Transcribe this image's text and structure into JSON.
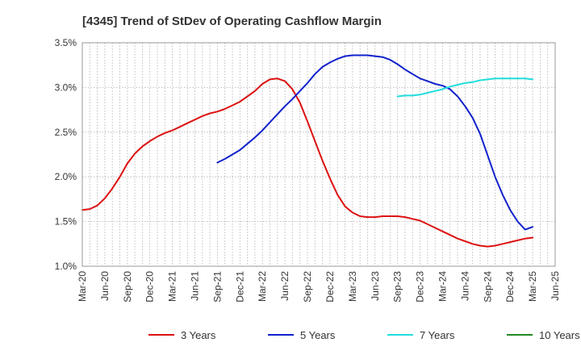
{
  "chart_data": {
    "type": "line",
    "title": "[4345]  Trend of StDev of Operating Cashflow Margin",
    "xlabel": "",
    "ylabel": "",
    "y_unit": "%",
    "ylim": [
      1.0,
      3.5
    ],
    "y_ticks": [
      "1.0%",
      "1.5%",
      "2.0%",
      "2.5%",
      "3.0%",
      "3.5%"
    ],
    "x_ticks": [
      "Mar-20",
      "Jun-20",
      "Sep-20",
      "Dec-20",
      "Mar-21",
      "Jun-21",
      "Sep-21",
      "Dec-21",
      "Mar-22",
      "Jun-22",
      "Sep-22",
      "Dec-22",
      "Mar-23",
      "Jun-23",
      "Sep-23",
      "Dec-23",
      "Mar-24",
      "Jun-24",
      "Sep-24",
      "Dec-24",
      "Mar-25",
      "Jun-25"
    ],
    "grid": true,
    "legend_position": "bottom",
    "series": [
      {
        "name": "3 Years",
        "color": "#dd1111",
        "x": [
          "Mar-20",
          "Apr-20",
          "May-20",
          "Jun-20",
          "Jul-20",
          "Aug-20",
          "Sep-20",
          "Oct-20",
          "Nov-20",
          "Dec-20",
          "Jan-21",
          "Feb-21",
          "Mar-21",
          "Apr-21",
          "May-21",
          "Jun-21",
          "Jul-21",
          "Aug-21",
          "Sep-21",
          "Oct-21",
          "Nov-21",
          "Dec-21",
          "Jan-22",
          "Feb-22",
          "Mar-22",
          "Apr-22",
          "May-22",
          "Jun-22",
          "Jul-22",
          "Aug-22",
          "Sep-22",
          "Oct-22",
          "Nov-22",
          "Dec-22",
          "Jan-23",
          "Feb-23",
          "Mar-23",
          "Apr-23",
          "May-23",
          "Jun-23",
          "Jul-23",
          "Aug-23",
          "Sep-23",
          "Oct-23",
          "Nov-23",
          "Dec-23",
          "Jan-24",
          "Feb-24",
          "Mar-24",
          "Apr-24",
          "May-24",
          "Jun-24",
          "Jul-24",
          "Aug-24",
          "Sep-24",
          "Oct-24",
          "Nov-24",
          "Dec-24",
          "Jan-25",
          "Feb-25",
          "Mar-25"
        ],
        "values": [
          1.63,
          1.64,
          1.68,
          1.76,
          1.87,
          2.0,
          2.15,
          2.26,
          2.34,
          2.4,
          2.45,
          2.49,
          2.52,
          2.56,
          2.6,
          2.64,
          2.68,
          2.71,
          2.73,
          2.76,
          2.8,
          2.84,
          2.9,
          2.96,
          3.04,
          3.09,
          3.1,
          3.07,
          2.98,
          2.83,
          2.62,
          2.4,
          2.18,
          1.98,
          1.8,
          1.67,
          1.6,
          1.56,
          1.55,
          1.55,
          1.56,
          1.56,
          1.56,
          1.55,
          1.53,
          1.51,
          1.47,
          1.43,
          1.39,
          1.35,
          1.31,
          1.28,
          1.25,
          1.23,
          1.22,
          1.23,
          1.25,
          1.27,
          1.29,
          1.31,
          1.32
        ]
      },
      {
        "name": "5 Years",
        "color": "#1122cc",
        "x": [
          "Sep-21",
          "Oct-21",
          "Nov-21",
          "Dec-21",
          "Jan-22",
          "Feb-22",
          "Mar-22",
          "Apr-22",
          "May-22",
          "Jun-22",
          "Jul-22",
          "Aug-22",
          "Sep-22",
          "Oct-22",
          "Nov-22",
          "Dec-22",
          "Jan-23",
          "Feb-23",
          "Mar-23",
          "Apr-23",
          "May-23",
          "Jun-23",
          "Jul-23",
          "Aug-23",
          "Sep-23",
          "Oct-23",
          "Nov-23",
          "Dec-23",
          "Jan-24",
          "Feb-24",
          "Mar-24",
          "Apr-24",
          "May-24",
          "Jun-24",
          "Jul-24",
          "Aug-24",
          "Sep-24",
          "Oct-24",
          "Nov-24",
          "Dec-24",
          "Jan-25",
          "Feb-25",
          "Mar-25"
        ],
        "values": [
          2.16,
          2.2,
          2.25,
          2.3,
          2.37,
          2.44,
          2.52,
          2.61,
          2.7,
          2.79,
          2.87,
          2.96,
          3.05,
          3.15,
          3.23,
          3.28,
          3.32,
          3.35,
          3.36,
          3.36,
          3.36,
          3.35,
          3.34,
          3.31,
          3.26,
          3.2,
          3.15,
          3.1,
          3.07,
          3.04,
          3.02,
          2.98,
          2.9,
          2.79,
          2.66,
          2.48,
          2.24,
          2.0,
          1.8,
          1.63,
          1.5,
          1.41,
          1.44
        ]
      },
      {
        "name": "7 Years",
        "color": "#22dddd",
        "x": [
          "Sep-23",
          "Oct-23",
          "Nov-23",
          "Dec-23",
          "Jan-24",
          "Feb-24",
          "Mar-24",
          "Apr-24",
          "May-24",
          "Jun-24",
          "Jul-24",
          "Aug-24",
          "Sep-24",
          "Oct-24",
          "Nov-24",
          "Dec-24",
          "Jan-25",
          "Feb-25",
          "Mar-25"
        ],
        "values": [
          2.9,
          2.91,
          2.91,
          2.92,
          2.94,
          2.96,
          2.98,
          3.01,
          3.03,
          3.05,
          3.06,
          3.08,
          3.09,
          3.1,
          3.1,
          3.1,
          3.1,
          3.1,
          3.09
        ]
      },
      {
        "name": "10 Years",
        "color": "#228822",
        "x": [],
        "values": []
      }
    ]
  }
}
